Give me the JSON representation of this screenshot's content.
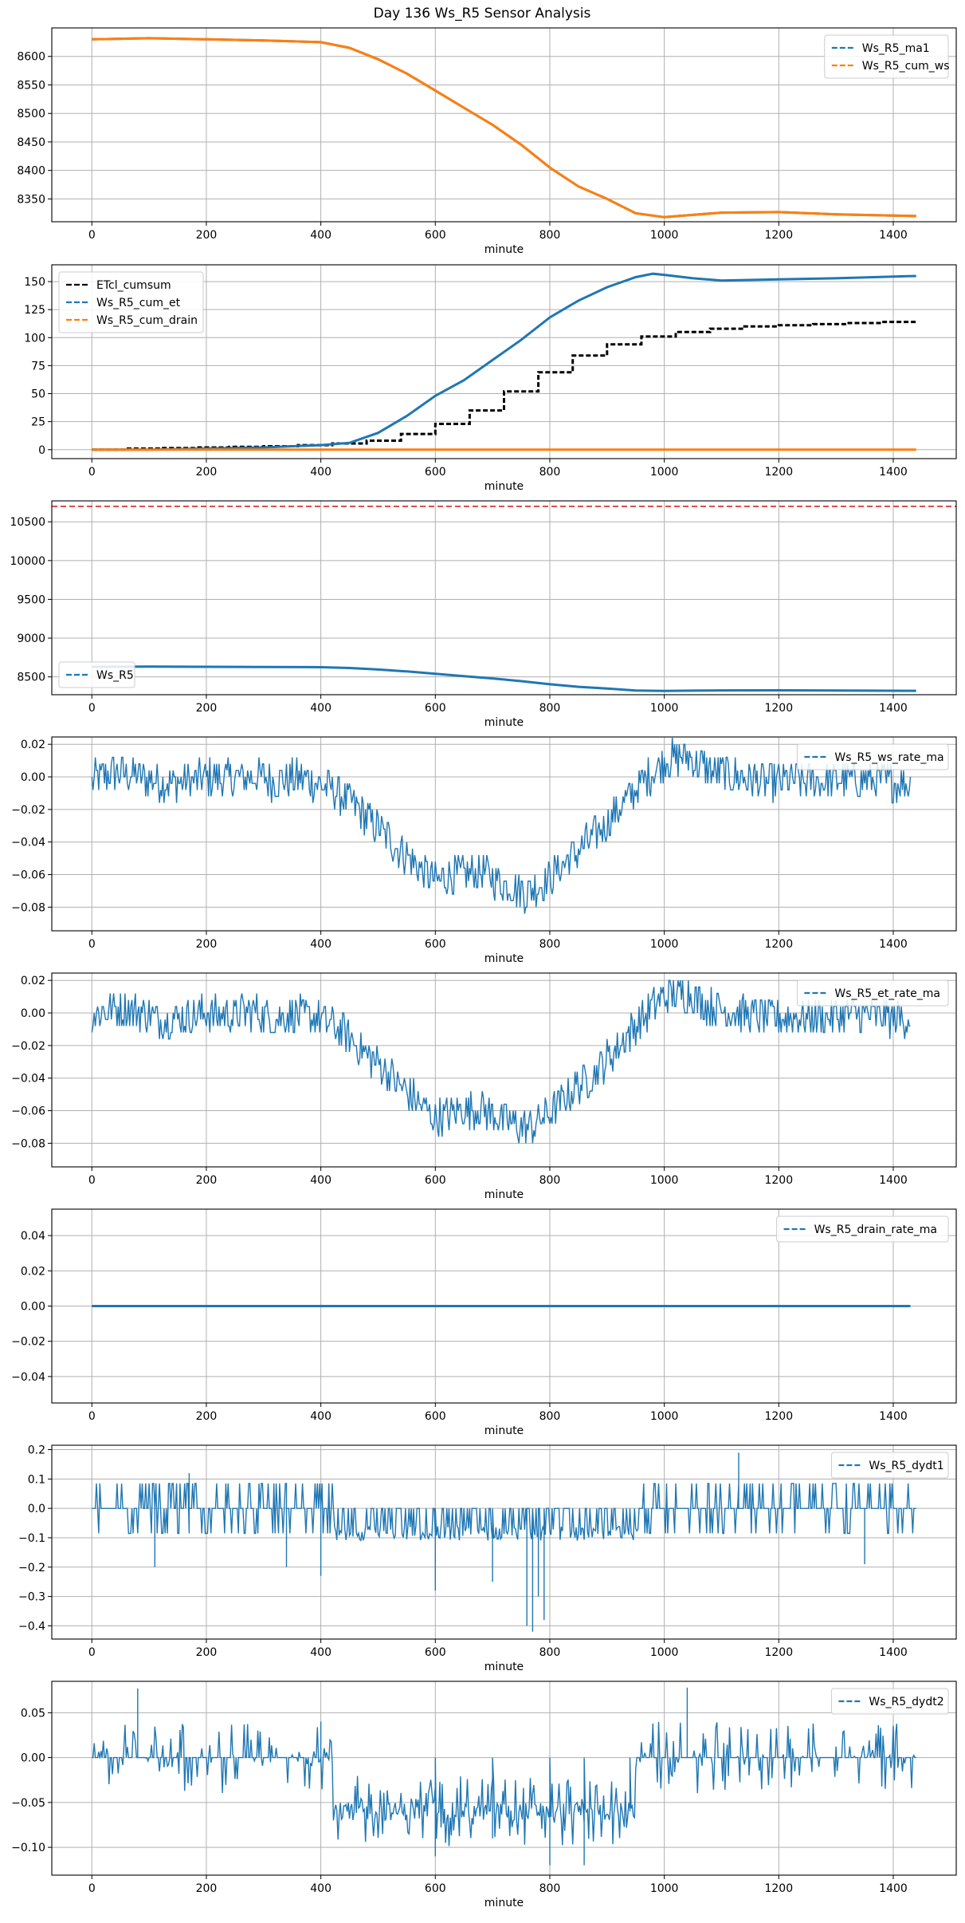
{
  "chart_data": {
    "title": "Day 136 Ws_R5 Sensor Analysis",
    "subplots": [
      {
        "type": "line",
        "xlabel": "minute",
        "xlim": [
          -70,
          1510
        ],
        "ylim": [
          8310,
          8650
        ],
        "yticks": [
          8350,
          8400,
          8450,
          8500,
          8550,
          8600
        ],
        "xticks": [
          0,
          200,
          400,
          600,
          800,
          1000,
          1200,
          1400
        ],
        "legend": "top-right",
        "series": [
          {
            "name": "Ws_R5_ma1",
            "color": "#1f77b4",
            "style": "dashed",
            "x": [
              0,
              100,
              200,
              300,
              400,
              450,
              500,
              550,
              600,
              650,
              700,
              750,
              800,
              850,
              900,
              950,
              1000,
              1050,
              1100,
              1200,
              1300,
              1440
            ],
            "y": [
              8630,
              8632,
              8630,
              8628,
              8625,
              8615,
              8595,
              8570,
              8540,
              8510,
              8480,
              8445,
              8405,
              8372,
              8350,
              8325,
              8318,
              8322,
              8326,
              8327,
              8323,
              8320
            ]
          },
          {
            "name": "Ws_R5_cum_ws",
            "color": "#ff7f0e",
            "style": "dashed",
            "x": [
              0,
              100,
              200,
              300,
              400,
              450,
              500,
              550,
              600,
              650,
              700,
              750,
              800,
              850,
              900,
              950,
              1000,
              1050,
              1100,
              1200,
              1300,
              1440
            ],
            "y": [
              8630,
              8632,
              8630,
              8628,
              8625,
              8615,
              8595,
              8570,
              8540,
              8510,
              8480,
              8445,
              8405,
              8372,
              8350,
              8325,
              8318,
              8322,
              8326,
              8327,
              8323,
              8320
            ]
          }
        ]
      },
      {
        "type": "line",
        "xlabel": "minute",
        "xlim": [
          -70,
          1510
        ],
        "ylim": [
          -8,
          165
        ],
        "yticks": [
          0,
          25,
          50,
          75,
          100,
          125,
          150
        ],
        "xticks": [
          0,
          200,
          400,
          600,
          800,
          1000,
          1200,
          1400
        ],
        "legend": "top-left",
        "series": [
          {
            "name": "ETcl_cumsum",
            "color": "#000000",
            "style": "dashed",
            "step": true,
            "x": [
              0,
              60,
              120,
              180,
              240,
              300,
              360,
              420,
              480,
              540,
              600,
              660,
              720,
              780,
              840,
              900,
              960,
              1020,
              1080,
              1140,
              1200,
              1260,
              1320,
              1380,
              1440
            ],
            "y": [
              0,
              1,
              1.5,
              2,
              2.5,
              3,
              4,
              5.5,
              8,
              14,
              23,
              35,
              52,
              69,
              84,
              94,
              101,
              105,
              108,
              110,
              111,
              112,
              113,
              114,
              114
            ]
          },
          {
            "name": "Ws_R5_cum_et",
            "color": "#1f77b4",
            "style": "dashed",
            "x": [
              0,
              100,
              200,
              300,
              400,
              450,
              500,
              550,
              600,
              650,
              700,
              750,
              800,
              850,
              900,
              950,
              980,
              1000,
              1050,
              1100,
              1200,
              1300,
              1440
            ],
            "y": [
              0,
              0,
              1,
              2,
              4,
              6,
              15,
              30,
              48,
              62,
              80,
              98,
              118,
              133,
              145,
              154,
              157,
              156,
              153,
              151,
              152,
              153,
              155
            ]
          },
          {
            "name": "Ws_R5_cum_drain",
            "color": "#ff7f0e",
            "style": "dashed",
            "x": [
              0,
              1440
            ],
            "y": [
              0,
              0
            ]
          }
        ]
      },
      {
        "type": "line",
        "xlabel": "minute",
        "xlim": [
          -70,
          1510
        ],
        "ylim": [
          8270,
          10770
        ],
        "yticks": [
          8500,
          9000,
          9500,
          10000,
          10500
        ],
        "xticks": [
          0,
          200,
          400,
          600,
          800,
          1000,
          1200,
          1400
        ],
        "legend": "bottom-left",
        "hline": {
          "y": 10700,
          "color": "#d62728",
          "style": "dashed"
        },
        "series": [
          {
            "name": "Ws_R5",
            "color": "#1f77b4",
            "style": "dashed",
            "x": [
              0,
              100,
              200,
              300,
              400,
              450,
              500,
              550,
              600,
              650,
              700,
              750,
              800,
              850,
              900,
              950,
              1000,
              1050,
              1100,
              1200,
              1300,
              1440
            ],
            "y": [
              8630,
              8632,
              8630,
              8628,
              8625,
              8615,
              8595,
              8570,
              8540,
              8510,
              8480,
              8445,
              8405,
              8372,
              8350,
              8325,
              8318,
              8322,
              8326,
              8327,
              8323,
              8320
            ]
          }
        ]
      },
      {
        "type": "line",
        "xlabel": "minute",
        "xlim": [
          -70,
          1510
        ],
        "ylim": [
          -0.0945,
          0.0245
        ],
        "yticks": [
          -0.08,
          -0.06,
          -0.04,
          -0.02,
          0.0,
          0.02
        ],
        "ytick_labels": [
          "−0.08",
          "−0.06",
          "−0.04",
          "−0.02",
          "0.00",
          "0.02"
        ],
        "xticks": [
          0,
          200,
          400,
          600,
          800,
          1000,
          1200,
          1400
        ],
        "legend": "top-right",
        "series": [
          {
            "name": "Ws_R5_ws_rate_ma",
            "color": "#1f77b4",
            "style": "dashed",
            "x": [
              0,
              40,
              80,
              120,
              160,
              200,
              240,
              280,
              320,
              360,
              400,
              440,
              480,
              520,
              560,
              600,
              640,
              680,
              720,
              760,
              800,
              840,
              880,
              920,
              960,
              1000,
              1040,
              1080,
              1120,
              1160,
              1200,
              1240,
              1280,
              1320,
              1360,
              1400,
              1430
            ],
            "y": [
              -0.002,
              0.003,
              0.001,
              -0.004,
              -0.003,
              0.0,
              -0.002,
              0.001,
              -0.003,
              -0.001,
              -0.004,
              -0.012,
              -0.025,
              -0.038,
              -0.052,
              -0.064,
              -0.06,
              -0.058,
              -0.066,
              -0.071,
              -0.062,
              -0.048,
              -0.036,
              -0.02,
              -0.004,
              0.01,
              0.012,
              0.004,
              0.001,
              -0.002,
              -0.003,
              -0.002,
              -0.003,
              -0.001,
              -0.002,
              -0.003,
              -0.004
            ],
            "noise_amp": 0.012
          }
        ]
      },
      {
        "type": "line",
        "xlabel": "minute",
        "xlim": [
          -70,
          1510
        ],
        "ylim": [
          -0.0945,
          0.0245
        ],
        "yticks": [
          -0.08,
          -0.06,
          -0.04,
          -0.02,
          0.0,
          0.02
        ],
        "ytick_labels": [
          "−0.08",
          "−0.06",
          "−0.04",
          "−0.02",
          "0.00",
          "0.02"
        ],
        "xticks": [
          0,
          200,
          400,
          600,
          800,
          1000,
          1200,
          1400
        ],
        "legend": "top-right",
        "series": [
          {
            "name": "Ws_R5_et_rate_ma",
            "color": "#1f77b4",
            "style": "dashed",
            "x": [
              0,
              40,
              80,
              120,
              160,
              200,
              240,
              280,
              320,
              360,
              400,
              440,
              480,
              520,
              560,
              600,
              640,
              680,
              720,
              760,
              800,
              840,
              880,
              920,
              960,
              1000,
              1040,
              1080,
              1120,
              1160,
              1200,
              1240,
              1280,
              1320,
              1360,
              1400,
              1430
            ],
            "y": [
              -0.002,
              0.003,
              0.001,
              -0.004,
              -0.003,
              0.0,
              -0.002,
              0.001,
              -0.003,
              -0.001,
              -0.004,
              -0.012,
              -0.025,
              -0.038,
              -0.052,
              -0.064,
              -0.06,
              -0.058,
              -0.066,
              -0.071,
              -0.062,
              -0.048,
              -0.036,
              -0.02,
              -0.004,
              0.01,
              0.012,
              0.004,
              0.001,
              -0.002,
              -0.003,
              -0.002,
              -0.003,
              -0.001,
              -0.002,
              -0.003,
              -0.004
            ],
            "noise_amp": 0.012
          }
        ]
      },
      {
        "type": "line",
        "xlabel": "minute",
        "xlim": [
          -70,
          1510
        ],
        "ylim": [
          -0.055,
          0.055
        ],
        "yticks": [
          -0.04,
          -0.02,
          0.0,
          0.02,
          0.04
        ],
        "ytick_labels": [
          "−0.04",
          "−0.02",
          "0.00",
          "0.02",
          "0.04"
        ],
        "xticks": [
          0,
          200,
          400,
          600,
          800,
          1000,
          1200,
          1400
        ],
        "legend": "top-right",
        "series": [
          {
            "name": "Ws_R5_drain_rate_ma",
            "color": "#1f77b4",
            "style": "dashed",
            "x": [
              0,
              1430
            ],
            "y": [
              0,
              0
            ]
          }
        ]
      },
      {
        "type": "line",
        "xlabel": "minute",
        "xlim": [
          -70,
          1510
        ],
        "ylim": [
          -0.445,
          0.215
        ],
        "yticks": [
          -0.4,
          -0.3,
          -0.2,
          -0.1,
          0.0,
          0.1,
          0.2
        ],
        "ytick_labels": [
          "−0.4",
          "−0.3",
          "−0.2",
          "−0.1",
          "0.0",
          "0.1",
          "0.2"
        ],
        "xticks": [
          0,
          200,
          400,
          600,
          800,
          1000,
          1200,
          1400
        ],
        "legend": "top-right",
        "series": [
          {
            "name": "Ws_R5_dydt1",
            "color": "#1f77b4",
            "style": "dashed",
            "x": [
              0,
              110,
              170,
              340,
              400,
              600,
              700,
              760,
              770,
              780,
              790,
              1130,
              1350,
              1440
            ],
            "y": [
              0,
              -0.2,
              0.12,
              -0.2,
              -0.23,
              -0.28,
              -0.25,
              -0.4,
              -0.42,
              -0.3,
              -0.38,
              0.19,
              -0.19,
              0
            ]
          }
        ]
      },
      {
        "type": "line",
        "xlabel": "minute",
        "xlim": [
          -70,
          1510
        ],
        "ylim": [
          -0.131,
          0.085
        ],
        "yticks": [
          -0.1,
          -0.05,
          0.0,
          0.05
        ],
        "ytick_labels": [
          "−0.10",
          "−0.05",
          "0.00",
          "0.05"
        ],
        "xticks": [
          0,
          200,
          400,
          600,
          800,
          1000,
          1200,
          1400
        ],
        "legend": "top-right",
        "series": [
          {
            "name": "Ws_R5_dydt2",
            "color": "#1f77b4",
            "style": "dashed",
            "x": [
              0,
              80,
              400,
              600,
              700,
              800,
              860,
              940,
              1040,
              1440
            ],
            "y": [
              0,
              0.077,
              0.04,
              -0.11,
              -0.09,
              -0.12,
              -0.12,
              -0.06,
              0.078,
              0
            ]
          }
        ]
      }
    ]
  }
}
